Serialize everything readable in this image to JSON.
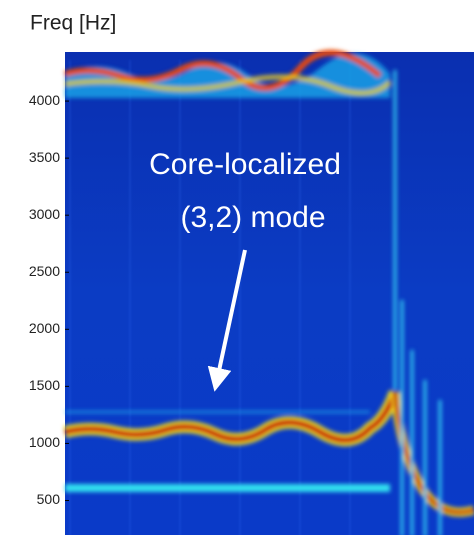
{
  "chart_data": {
    "type": "spectrogram",
    "ylabel": "Freq [Hz]",
    "annotation": [
      "Core-localized",
      "(3,2) mode"
    ],
    "ylim": [
      180,
      4430
    ],
    "yticks": [
      500,
      1000,
      1500,
      2000,
      2500,
      3000,
      3500,
      4000
    ]
  }
}
